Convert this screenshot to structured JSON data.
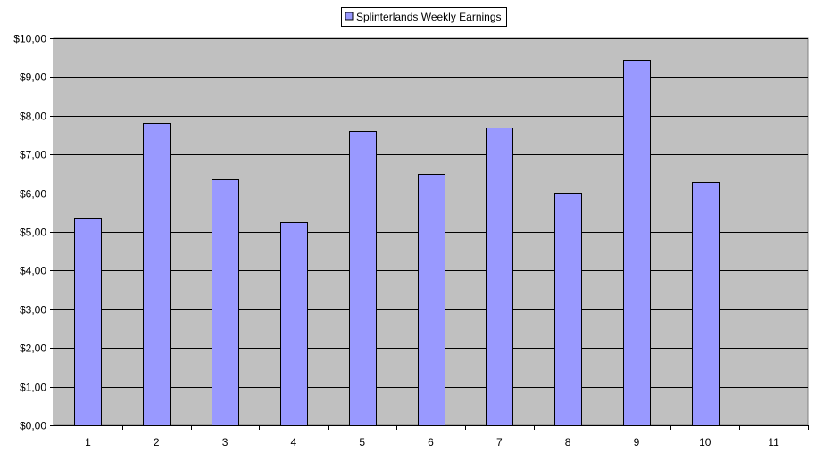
{
  "chart_data": {
    "type": "bar",
    "categories": [
      "1",
      "2",
      "3",
      "4",
      "5",
      "6",
      "7",
      "8",
      "9",
      "10",
      "11"
    ],
    "series": [
      {
        "name": "Splinterlands Weekly Earnings",
        "values": [
          5.35,
          7.8,
          6.37,
          5.25,
          7.6,
          6.5,
          7.7,
          6.02,
          9.45,
          6.3,
          null
        ],
        "color": "#9999ff"
      }
    ],
    "y_ticks": [
      "$0,00",
      "$1,00",
      "$2,00",
      "$3,00",
      "$4,00",
      "$5,00",
      "$6,00",
      "$7,00",
      "$8,00",
      "$9,00",
      "$10,00"
    ],
    "ylim": [
      0,
      10
    ],
    "grid": true,
    "legend_position": "top-center",
    "plot_background": "#c0c0c0",
    "gridline_color": "#000000"
  }
}
